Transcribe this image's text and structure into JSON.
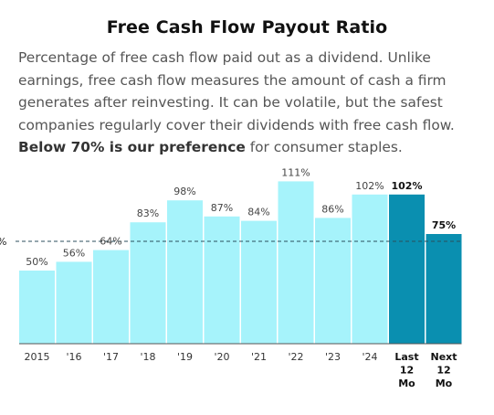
{
  "header": {
    "title": "Free Cash Flow Payout Ratio",
    "description": "Percentage of free cash flow paid out as a dividend. Unlike earnings, free cash flow measures the amount of cash a firm generates after reinvesting. It can be volatile, but the safest companies regularly cover their dividends with free cash flow.",
    "description_emphasis": "Below 70% is our preference",
    "description_tail": " for consumer staples."
  },
  "chart_data": {
    "type": "bar",
    "title": "Free Cash Flow Payout Ratio",
    "categories": [
      "2015",
      "'16",
      "'17",
      "'18",
      "'19",
      "'20",
      "'21",
      "'22",
      "'23",
      "'24",
      "Last 12 Mo",
      "Next 12 Mo"
    ],
    "tick_labels": [
      [
        "2015"
      ],
      [
        "'16"
      ],
      [
        "'17"
      ],
      [
        "'18"
      ],
      [
        "'19"
      ],
      [
        "'20"
      ],
      [
        "'21"
      ],
      [
        "'22"
      ],
      [
        "'23"
      ],
      [
        "'24"
      ],
      [
        "Last",
        "12",
        "Mo"
      ],
      [
        "Next",
        "12",
        "Mo"
      ]
    ],
    "values": [
      50,
      56,
      64,
      83,
      98,
      87,
      84,
      111,
      86,
      102,
      102,
      75
    ],
    "value_labels": [
      "50%",
      "56%",
      "64%",
      "83%",
      "98%",
      "87%",
      "84%",
      "111%",
      "86%",
      "102%",
      "102%",
      "75%"
    ],
    "highlighted": [
      10,
      11
    ],
    "reference_line": {
      "value": 70,
      "label": "%"
    },
    "ylim": [
      0,
      115
    ],
    "xlabel": "",
    "ylabel": "",
    "grid": false,
    "colors": {
      "historical": "#a6f3fb",
      "highlighted": "#0a8fb0",
      "reference_line": "#2b4f5c",
      "reference_label": "#1a7fa5",
      "axis": "#555555"
    }
  }
}
